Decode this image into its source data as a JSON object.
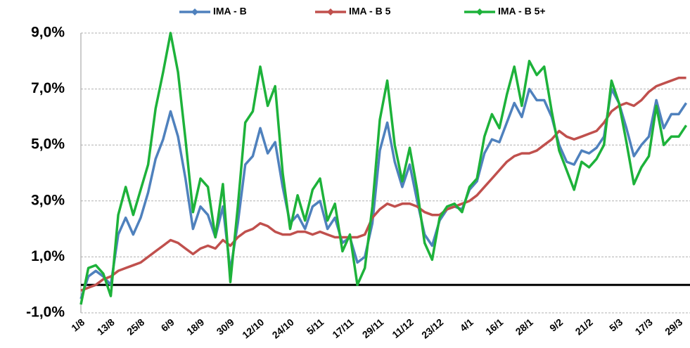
{
  "chart_data": {
    "type": "line",
    "categories": [
      "1/8",
      null,
      null,
      null,
      "13/8",
      null,
      null,
      null,
      "25/8",
      null,
      null,
      null,
      "6/9",
      null,
      null,
      null,
      "18/9",
      null,
      null,
      null,
      "30/9",
      null,
      null,
      null,
      "12/10",
      null,
      null,
      null,
      "24/10",
      null,
      null,
      null,
      "5/11",
      null,
      null,
      null,
      "17/11",
      null,
      null,
      null,
      "29/11",
      null,
      null,
      null,
      "11/12",
      null,
      null,
      null,
      "23/12",
      null,
      null,
      null,
      "4/1",
      null,
      null,
      null,
      "16/1",
      null,
      null,
      null,
      "28/1",
      null,
      null,
      null,
      "9/2",
      null,
      null,
      null,
      "21/2",
      null,
      null,
      null,
      "5/3",
      null,
      null,
      null,
      "17/3",
      null,
      null,
      null,
      "29/3",
      null
    ],
    "series": [
      {
        "name": "IMA - B",
        "color": "#4f81bd",
        "values": [
          -0.5,
          0.3,
          0.5,
          0.3,
          0.0,
          1.8,
          2.4,
          1.8,
          2.4,
          3.3,
          4.5,
          5.2,
          6.2,
          5.3,
          3.8,
          2.0,
          2.8,
          2.5,
          1.7,
          2.8,
          0.5,
          2.2,
          4.3,
          4.6,
          5.6,
          4.7,
          5.1,
          3.5,
          2.2,
          2.5,
          2.0,
          2.8,
          3.0,
          2.0,
          2.4,
          1.5,
          1.7,
          0.8,
          1.0,
          2.2,
          4.8,
          5.8,
          4.4,
          3.5,
          4.3,
          3.0,
          1.8,
          1.4,
          2.3,
          2.7,
          2.8,
          2.7,
          3.4,
          3.7,
          4.7,
          5.2,
          5.1,
          5.8,
          6.5,
          6.0,
          7.0,
          6.6,
          6.6,
          6.0,
          5.0,
          4.4,
          4.3,
          4.8,
          4.7,
          4.9,
          5.3,
          7.0,
          6.5,
          5.6,
          4.6,
          5.0,
          5.3,
          6.6,
          5.6,
          6.1,
          6.1,
          6.5
        ]
      },
      {
        "name": "IMA - B 5",
        "color": "#c0504d",
        "values": [
          -0.2,
          -0.1,
          0.0,
          0.2,
          0.3,
          0.5,
          0.6,
          0.7,
          0.8,
          1.0,
          1.2,
          1.4,
          1.6,
          1.5,
          1.3,
          1.1,
          1.3,
          1.4,
          1.3,
          1.6,
          1.4,
          1.7,
          1.9,
          2.0,
          2.2,
          2.1,
          1.9,
          1.8,
          1.8,
          1.9,
          1.9,
          1.8,
          1.9,
          1.8,
          1.7,
          1.7,
          1.7,
          1.7,
          1.8,
          2.4,
          2.7,
          2.9,
          2.8,
          2.9,
          2.9,
          2.8,
          2.6,
          2.5,
          2.5,
          2.7,
          2.8,
          2.9,
          3.0,
          3.2,
          3.5,
          3.8,
          4.1,
          4.4,
          4.6,
          4.7,
          4.7,
          4.8,
          5.0,
          5.2,
          5.5,
          5.3,
          5.2,
          5.3,
          5.4,
          5.5,
          5.8,
          6.2,
          6.4,
          6.5,
          6.4,
          6.6,
          6.9,
          7.1,
          7.2,
          7.3,
          7.4,
          7.4
        ]
      },
      {
        "name": "IMA - B 5+",
        "color": "#1db23a",
        "values": [
          -0.7,
          0.6,
          0.7,
          0.4,
          -0.4,
          2.5,
          3.5,
          2.5,
          3.4,
          4.3,
          6.3,
          7.6,
          9.0,
          7.6,
          5.2,
          2.6,
          3.8,
          3.5,
          1.7,
          3.6,
          0.1,
          2.8,
          5.8,
          6.2,
          7.8,
          6.4,
          7.1,
          4.0,
          2.0,
          3.2,
          2.3,
          3.4,
          3.8,
          2.3,
          2.9,
          1.2,
          1.8,
          0.0,
          0.6,
          2.8,
          5.9,
          7.3,
          5.0,
          3.7,
          4.9,
          3.4,
          1.5,
          0.9,
          2.4,
          2.8,
          2.9,
          2.6,
          3.5,
          3.8,
          5.3,
          6.1,
          5.6,
          6.8,
          7.8,
          6.4,
          8.0,
          7.5,
          7.8,
          6.2,
          4.8,
          4.1,
          3.4,
          4.4,
          4.2,
          4.5,
          5.0,
          7.3,
          6.5,
          5.1,
          3.6,
          4.2,
          4.6,
          6.4,
          5.0,
          5.3,
          5.3,
          5.7
        ]
      }
    ],
    "ylim": [
      -1,
      9
    ],
    "yticks": [
      {
        "value": -1,
        "label": "-1,0%"
      },
      {
        "value": 1,
        "label": "1,0%"
      },
      {
        "value": 3,
        "label": "3,0%"
      },
      {
        "value": 5,
        "label": "5,0%"
      },
      {
        "value": 7,
        "label": "7,0%"
      },
      {
        "value": 9,
        "label": "9,0%"
      }
    ],
    "grid": true,
    "legend": "top"
  }
}
